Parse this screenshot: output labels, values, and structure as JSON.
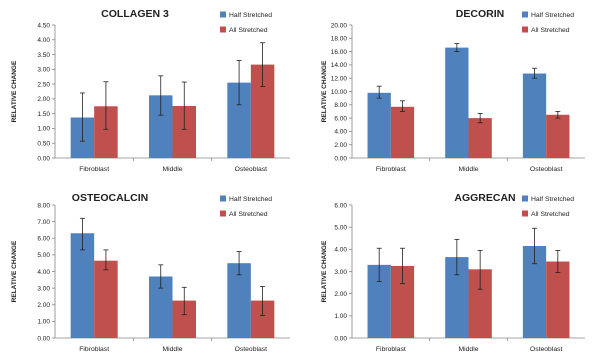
{
  "colors": {
    "half": "#4f81bd",
    "all": "#c0504d",
    "axis": "#868686",
    "text": "#222222"
  },
  "chart_data": [
    {
      "type": "bar",
      "title": "COLLAGEN 3",
      "ylabel": "RELATIVE CHANGE",
      "ylim": [
        0,
        4.5
      ],
      "yticks": [
        "0.00",
        "0.50",
        "1.00",
        "1.50",
        "2.00",
        "2.50",
        "3.00",
        "3.50",
        "4.00",
        "4.50"
      ],
      "categories": [
        "Fibroblast",
        "Middle",
        "Osteoblast"
      ],
      "series": [
        {
          "name": "Half Stretched",
          "values": [
            1.37,
            2.12,
            2.55
          ],
          "err_low": [
            0.57,
            1.45,
            1.8
          ],
          "err_high": [
            2.2,
            2.78,
            3.3
          ]
        },
        {
          "name": "All Stretched",
          "values": [
            1.75,
            1.76,
            3.16
          ],
          "err_low": [
            0.97,
            0.97,
            2.42
          ],
          "err_high": [
            2.58,
            2.57,
            3.9
          ]
        }
      ]
    },
    {
      "type": "bar",
      "title": "DECORIN",
      "ylabel": "RELATIVE CHANGE",
      "ylim": [
        0,
        20
      ],
      "yticks": [
        "0.00",
        "2.00",
        "4.00",
        "6.00",
        "8.00",
        "10.00",
        "12.00",
        "14.00",
        "16.00",
        "18.00",
        "20.00"
      ],
      "categories": [
        "Fibroblast",
        "Middle",
        "Osteoblast"
      ],
      "series": [
        {
          "name": "Half Stretched",
          "values": [
            9.8,
            16.6,
            12.7
          ],
          "err_low": [
            9.0,
            16.0,
            12.0
          ],
          "err_high": [
            10.8,
            17.2,
            13.5
          ]
        },
        {
          "name": "All Stretched",
          "values": [
            7.7,
            6.0,
            6.5
          ],
          "err_low": [
            7.0,
            5.3,
            6.0
          ],
          "err_high": [
            8.6,
            6.7,
            7.0
          ]
        }
      ]
    },
    {
      "type": "bar",
      "title": "OSTEOCALCIN",
      "ylabel": "RELATIVE CHANGE",
      "ylim": [
        0,
        8
      ],
      "yticks": [
        "0.00",
        "1.00",
        "2.00",
        "3.00",
        "4.00",
        "5.00",
        "6.00",
        "7.00",
        "8.00"
      ],
      "categories": [
        "Fibroblast",
        "Middle",
        "Osteoblast"
      ],
      "series": [
        {
          "name": "Half Stretched",
          "values": [
            6.3,
            3.7,
            4.5
          ],
          "err_low": [
            5.3,
            3.0,
            3.8
          ],
          "err_high": [
            7.2,
            4.4,
            5.2
          ]
        },
        {
          "name": "All Stretched",
          "values": [
            4.65,
            2.25,
            2.25
          ],
          "err_low": [
            4.1,
            1.4,
            1.35
          ],
          "err_high": [
            5.3,
            3.05,
            3.1
          ]
        }
      ]
    },
    {
      "type": "bar",
      "title": "AGGRECAN",
      "ylabel": "RELATIVE CHANGE",
      "ylim": [
        0,
        6
      ],
      "yticks": [
        "0.00",
        "1.00",
        "2.00",
        "3.00",
        "4.00",
        "5.00",
        "6.00"
      ],
      "categories": [
        "Fibroblast",
        "Middle",
        "Osteoblast"
      ],
      "series": [
        {
          "name": "Half Stretched",
          "values": [
            3.3,
            3.65,
            4.15
          ],
          "err_low": [
            2.55,
            2.85,
            3.35
          ],
          "err_high": [
            4.05,
            4.45,
            4.95
          ]
        },
        {
          "name": "All Stretched",
          "values": [
            3.25,
            3.1,
            3.45
          ],
          "err_low": [
            2.45,
            2.2,
            2.95
          ],
          "err_high": [
            4.05,
            3.95,
            3.95
          ]
        }
      ]
    }
  ]
}
